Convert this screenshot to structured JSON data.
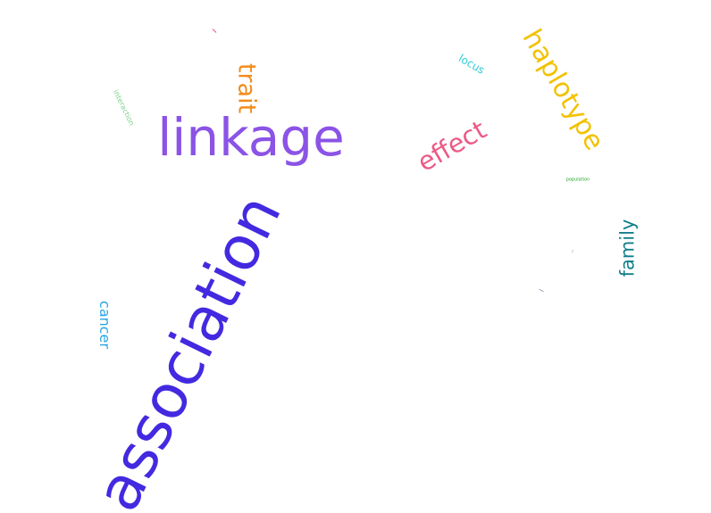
{
  "words": {
    "association": "association",
    "linkage": "linkage",
    "haplotype": "haplotype",
    "effect": "effect",
    "trait": "trait",
    "family": "family",
    "cancer": "cancer",
    "locus": "locus",
    "interaction": "interaction",
    "population": "population"
  },
  "colors": {
    "association": "#4329e0",
    "linkage": "#8b53e6",
    "haplotype": "#f2c200",
    "effect": "#ec5a86",
    "trait": "#f28c1a",
    "family": "#137f8a",
    "cancer": "#27a5e3",
    "locus": "#2ec9d8",
    "interaction": "#7fd08a",
    "population": "#2aa62a"
  }
}
